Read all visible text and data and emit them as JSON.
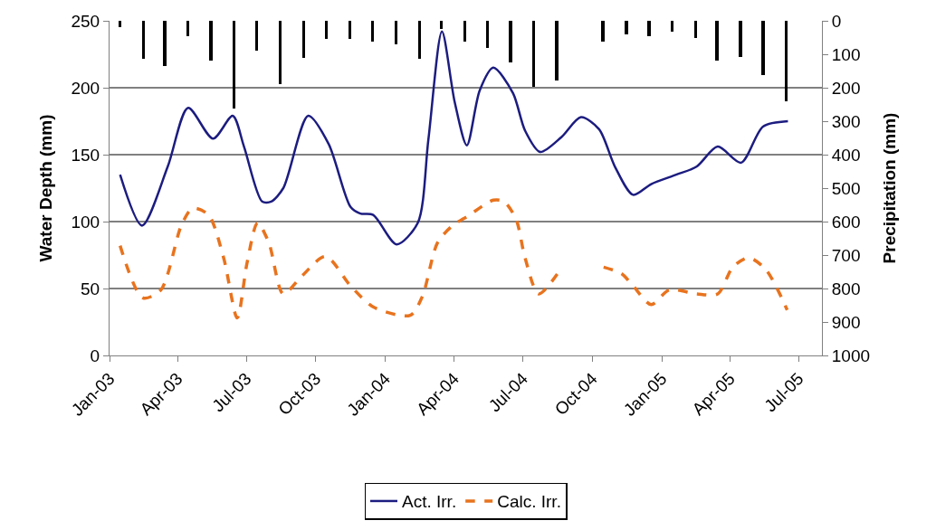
{
  "chart_data": {
    "type": "line",
    "ylabel": "Water Depth (mm)",
    "y2label": "Precipitation (mm)",
    "xlim": [
      "2003-01-01",
      "2005-08-01"
    ],
    "xticks": [
      {
        "value": "2003-01-01",
        "label": "Jan-03"
      },
      {
        "value": "2003-04-01",
        "label": "Apr-03"
      },
      {
        "value": "2003-07-01",
        "label": "Jul-03"
      },
      {
        "value": "2003-10-01",
        "label": "Oct-03"
      },
      {
        "value": "2004-01-01",
        "label": "Jan-04"
      },
      {
        "value": "2004-04-01",
        "label": "Apr-04"
      },
      {
        "value": "2004-07-01",
        "label": "Jul-04"
      },
      {
        "value": "2004-10-01",
        "label": "Oct-04"
      },
      {
        "value": "2005-01-01",
        "label": "Jan-05"
      },
      {
        "value": "2005-04-01",
        "label": "Apr-05"
      },
      {
        "value": "2005-07-01",
        "label": "Jul-05"
      }
    ],
    "ylim": [
      0,
      250
    ],
    "yticks": [
      0,
      50,
      100,
      150,
      200,
      250
    ],
    "y2lim": [
      1000,
      0
    ],
    "y2ticks": [
      0,
      100,
      200,
      300,
      400,
      500,
      600,
      700,
      800,
      900,
      1000
    ],
    "grid": "y",
    "legend": "bottom",
    "marker": "none",
    "series": [
      {
        "type": "bar",
        "axis": "y2",
        "color": "#000000",
        "x": [
          "2003-01-15",
          "2003-02-15",
          "2003-03-15",
          "2003-04-15",
          "2003-05-15",
          "2003-06-15",
          "2003-07-15",
          "2003-08-15",
          "2003-09-15",
          "2003-10-15",
          "2003-11-15",
          "2003-12-15",
          "2004-01-15",
          "2004-02-15",
          "2004-03-15",
          "2004-04-15",
          "2004-05-15",
          "2004-06-15",
          "2004-07-15",
          "2004-08-15",
          "2004-09-15",
          "2004-10-15",
          "2004-11-15",
          "2004-12-15",
          "2005-01-15",
          "2005-02-15",
          "2005-03-15",
          "2005-04-15",
          "2005-05-15",
          "2005-06-15"
        ],
        "values": [
          18,
          113,
          135,
          47,
          119,
          261,
          90,
          190,
          111,
          55,
          55,
          63,
          69,
          113,
          24,
          63,
          82,
          124,
          198,
          179,
          null,
          61,
          40,
          47,
          32,
          50,
          119,
          108,
          161,
          240
        ]
      },
      {
        "name": "Act. Irr.",
        "line_style": "solid",
        "color": "#1c1c80",
        "x": [
          "2003-01-15",
          "2003-02-13",
          "2003-03-19",
          "2003-04-15",
          "2003-05-18",
          "2003-06-13",
          "2003-06-28",
          "2003-07-22",
          "2003-08-03",
          "2003-08-19",
          "2003-09-21",
          "2003-10-18",
          "2003-11-16",
          "2003-11-29",
          "2003-12-16",
          "2004-01-16",
          "2004-02-13",
          "2004-02-27",
          "2004-03-16",
          "2004-04-02",
          "2004-04-18",
          "2004-05-05",
          "2004-05-23",
          "2004-06-18",
          "2004-07-04",
          "2004-07-24",
          "2004-08-21",
          "2004-09-16",
          "2004-10-10",
          "2004-10-31",
          "2004-11-24",
          "2004-12-18",
          "2005-01-20",
          "2005-02-16",
          "2005-03-16",
          "2005-04-16",
          "2005-05-15",
          "2005-06-17"
        ],
        "values": [
          135,
          97,
          141,
          185,
          162,
          179,
          156,
          115,
          115,
          125,
          179,
          158,
          111,
          106,
          105,
          83,
          99,
          161,
          242,
          189,
          157,
          198,
          215,
          196,
          168,
          152,
          163,
          178,
          169,
          141,
          120,
          128,
          135,
          141,
          156,
          144,
          171,
          175
        ]
      },
      {
        "name": "Calc. Irr.",
        "line_style": "dashed",
        "color": "#e8731e",
        "x": [
          "2003-01-15",
          "2003-02-14",
          "2003-03-10",
          "2003-04-06",
          "2003-04-21",
          "2003-05-12",
          "2003-06-01",
          "2003-06-19",
          "2003-07-02",
          "2003-07-16",
          "2003-07-31",
          "2003-08-19",
          "2003-09-12",
          "2003-10-14",
          "2003-11-16",
          "2003-12-17",
          "2004-02-03",
          "2004-02-19",
          "2004-03-10",
          "2004-03-30",
          "2004-04-19",
          "2004-05-23",
          "2004-06-06",
          "2004-06-22",
          "2004-07-04",
          "2004-07-22",
          "2004-08-17",
          "2004-09-15",
          "2004-10-16",
          "2004-11-09",
          "2004-11-24",
          "2004-12-18",
          "2005-01-11",
          "2005-02-16",
          "2005-03-16",
          "2005-04-05",
          "2005-04-26",
          "2005-05-19",
          "2005-06-16"
        ],
        "values": [
          82,
          43,
          49,
          97,
          110,
          105,
          73,
          28,
          69,
          99,
          84,
          46,
          59,
          74,
          52,
          36,
          30,
          44,
          84,
          97,
          104,
          116,
          115,
          102,
          73,
          46,
          62,
          null,
          66,
          61,
          52,
          38,
          49,
          46,
          46,
          66,
          73,
          64,
          34
        ]
      }
    ]
  }
}
